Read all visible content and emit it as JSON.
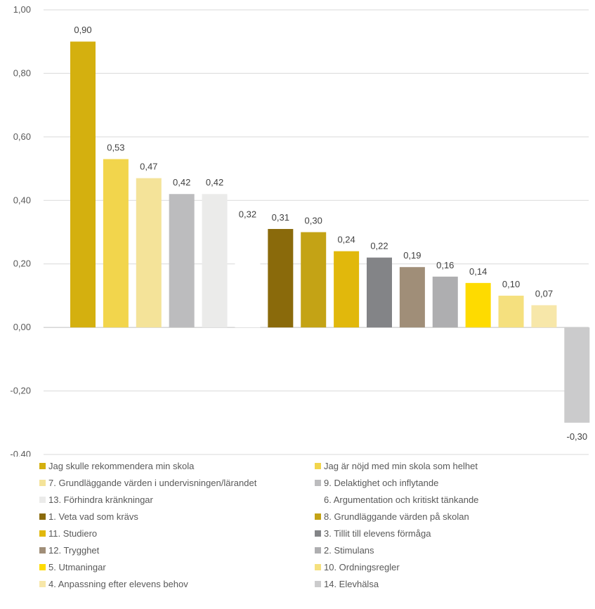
{
  "chart_data": {
    "type": "bar",
    "title": "",
    "xlabel": "",
    "ylabel": "",
    "ylim": [
      -0.4,
      1.0
    ],
    "yticks": [
      "1,00",
      "0,80",
      "0,60",
      "0,40",
      "0,20",
      "0,00",
      "-0,20",
      "-0,40"
    ],
    "grid": true,
    "legend_position": "bottom",
    "series": [
      {
        "name": "Jag skulle rekommendera min skola",
        "value": 0.9,
        "label": "0,90",
        "color": "#d4b00f"
      },
      {
        "name": "Jag är nöjd med min skola som helhet",
        "value": 0.53,
        "label": "0,53",
        "color": "#f2d54c"
      },
      {
        "name": "7. Grundläggande värden i undervisningen/lärandet",
        "value": 0.47,
        "label": "0,47",
        "color": "#f4e399"
      },
      {
        "name": "9. Delaktighet och inflytande",
        "value": 0.42,
        "label": "0,42",
        "color": "#bcbcbe"
      },
      {
        "name": "13. Förhindra kränkningar",
        "value": 0.42,
        "label": "0,42",
        "color": "#ebebea"
      },
      {
        "name": "6. Argumentation och kritiskt tänkande",
        "value": 0.32,
        "label": "0,32",
        "color": "#ffffff"
      },
      {
        "name": "1. Veta vad som krävs",
        "value": 0.31,
        "label": "0,31",
        "color": "#8a6a0b"
      },
      {
        "name": "8. Grundläggande värden på skolan",
        "value": 0.3,
        "label": "0,30",
        "color": "#c4a315"
      },
      {
        "name": "11. Studiero",
        "value": 0.24,
        "label": "0,24",
        "color": "#e1b80c"
      },
      {
        "name": "3. Tillit till elevens förmåga",
        "value": 0.22,
        "label": "0,22",
        "color": "#838487"
      },
      {
        "name": "12. Trygghet",
        "value": 0.19,
        "label": "0,19",
        "color": "#a08e78"
      },
      {
        "name": "2. Stimulans",
        "value": 0.16,
        "label": "0,16",
        "color": "#aeaeb0"
      },
      {
        "name": "5. Utmaningar",
        "value": 0.14,
        "label": "0,14",
        "color": "#fedb00"
      },
      {
        "name": "10. Ordningsregler",
        "value": 0.1,
        "label": "0,10",
        "color": "#f5e07e"
      },
      {
        "name": "4. Anpassning efter elevens behov",
        "value": 0.07,
        "label": "0,07",
        "color": "#f7e7a9"
      },
      {
        "name": "14. Elevhälsa",
        "value": -0.3,
        "label": "-0,30",
        "color": "#cbcbcc"
      }
    ]
  }
}
